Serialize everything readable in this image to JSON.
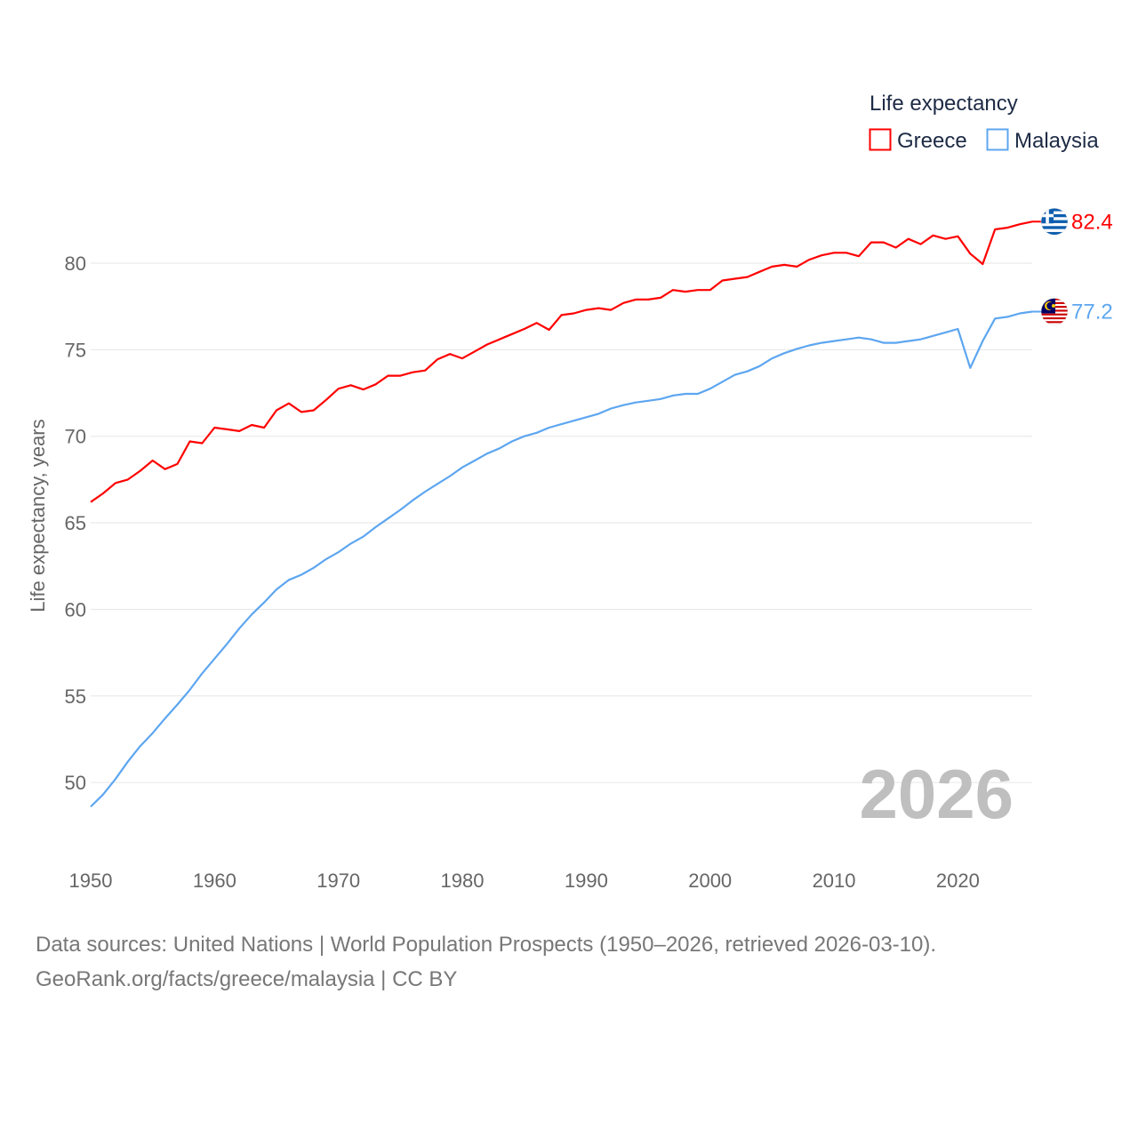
{
  "chart_data": {
    "type": "line",
    "title": "",
    "xlabel": "",
    "ylabel": "Life expectancy, years",
    "xlim": [
      1950,
      2026
    ],
    "ylim": [
      46.8,
      84
    ],
    "x_ticks": [
      "1950",
      "1960",
      "1970",
      "1980",
      "1990",
      "2000",
      "2010",
      "2020"
    ],
    "y_ticks": [
      "50",
      "55",
      "60",
      "65",
      "70",
      "75",
      "80"
    ],
    "grid": true,
    "legend": {
      "title": "Life expectancy",
      "placement": "top-right"
    },
    "current_year_label": "2026",
    "x": [
      1950,
      1951,
      1952,
      1953,
      1954,
      1955,
      1956,
      1957,
      1958,
      1959,
      1960,
      1961,
      1962,
      1963,
      1964,
      1965,
      1966,
      1967,
      1968,
      1969,
      1970,
      1971,
      1972,
      1973,
      1974,
      1975,
      1976,
      1977,
      1978,
      1979,
      1980,
      1981,
      1982,
      1983,
      1984,
      1985,
      1986,
      1987,
      1988,
      1989,
      1990,
      1991,
      1992,
      1993,
      1994,
      1995,
      1996,
      1997,
      1998,
      1999,
      2000,
      2001,
      2002,
      2003,
      2004,
      2005,
      2006,
      2007,
      2008,
      2009,
      2010,
      2011,
      2012,
      2013,
      2014,
      2015,
      2016,
      2017,
      2018,
      2019,
      2020,
      2021,
      2022,
      2023,
      2024,
      2025,
      2026
    ],
    "series": [
      {
        "name": "Greece",
        "color": "#ff0000",
        "end_label": "82.4",
        "values": [
          66.2,
          66.7,
          67.3,
          67.5,
          68.0,
          68.6,
          68.1,
          68.4,
          69.7,
          69.6,
          70.5,
          70.4,
          70.3,
          70.65,
          70.5,
          71.5,
          71.9,
          71.4,
          71.5,
          72.1,
          72.75,
          72.95,
          72.7,
          73.0,
          73.5,
          73.5,
          73.7,
          73.8,
          74.45,
          74.75,
          74.5,
          74.9,
          75.3,
          75.6,
          75.9,
          76.2,
          76.55,
          76.15,
          77.0,
          77.1,
          77.3,
          77.4,
          77.3,
          77.7,
          77.9,
          77.9,
          78.0,
          78.45,
          78.35,
          78.45,
          78.45,
          79.0,
          79.1,
          79.2,
          79.5,
          79.8,
          79.9,
          79.8,
          80.2,
          80.45,
          80.6,
          80.6,
          80.4,
          81.2,
          81.2,
          80.9,
          81.4,
          81.1,
          81.6,
          81.4,
          81.55,
          80.55,
          79.95,
          81.95,
          82.05,
          82.25,
          82.4
        ]
      },
      {
        "name": "Malaysia",
        "color": "#5da6f0",
        "end_label": "77.2",
        "values": [
          48.6,
          49.3,
          50.2,
          51.2,
          52.1,
          52.85,
          53.7,
          54.5,
          55.35,
          56.3,
          57.15,
          58.0,
          58.9,
          59.7,
          60.4,
          61.15,
          61.7,
          62.0,
          62.4,
          62.9,
          63.3,
          63.8,
          64.2,
          64.75,
          65.25,
          65.75,
          66.3,
          66.8,
          67.25,
          67.7,
          68.2,
          68.6,
          69.0,
          69.3,
          69.7,
          70.0,
          70.2,
          70.5,
          70.7,
          70.9,
          71.1,
          71.3,
          71.6,
          71.8,
          71.95,
          72.05,
          72.15,
          72.35,
          72.45,
          72.45,
          72.75,
          73.15,
          73.55,
          73.75,
          74.05,
          74.5,
          74.8,
          75.05,
          75.25,
          75.4,
          75.5,
          75.6,
          75.7,
          75.6,
          75.4,
          75.4,
          75.5,
          75.6,
          75.8,
          76.0,
          76.2,
          73.95,
          75.5,
          76.8,
          76.9,
          77.1,
          77.2
        ]
      }
    ]
  },
  "footer": {
    "line1": "Data sources: United Nations | World Population Prospects (1950–2026, retrieved 2026-03-10).",
    "line2": "GeoRank.org/facts/greece/malaysia | CC BY"
  }
}
